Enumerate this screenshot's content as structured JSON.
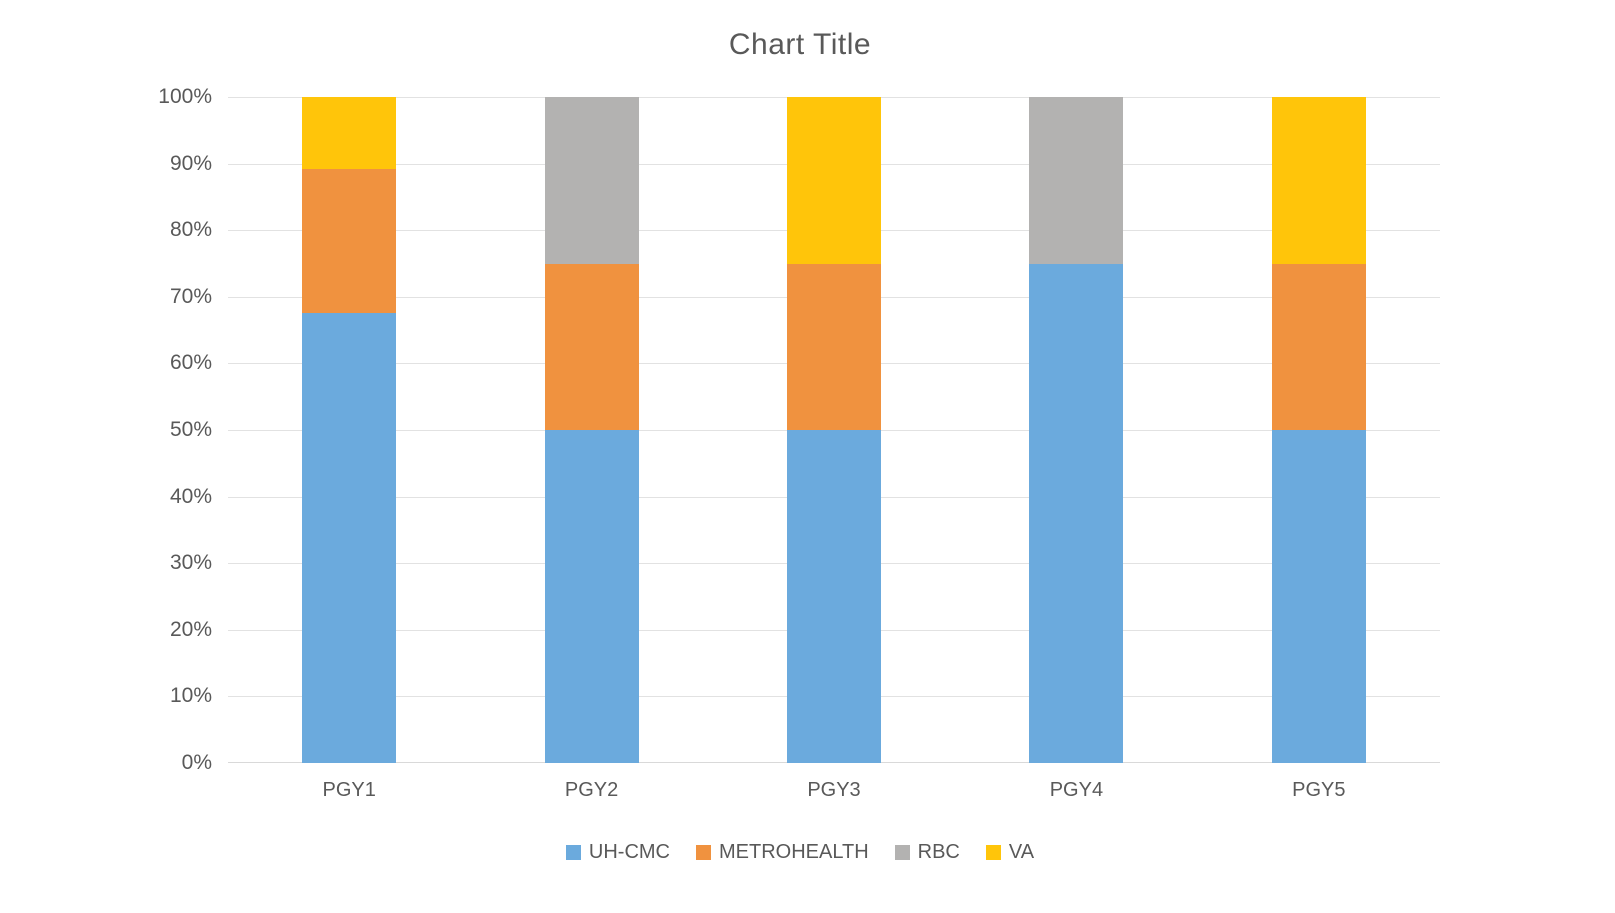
{
  "page": {
    "background": "#FFFFFF"
  },
  "chart_data": {
    "type": "bar",
    "variant": "stacked-100-percent-column",
    "title": "Chart Title",
    "categories": [
      "PGY1",
      "PGY2",
      "PGY3",
      "PGY4",
      "PGY5"
    ],
    "series": [
      {
        "name": "UH-CMC",
        "color": "#6BAADD",
        "values": [
          67.5,
          50,
          50,
          75,
          50
        ]
      },
      {
        "name": "METROHEALTH",
        "color": "#F0923F",
        "values": [
          21.7,
          25,
          25,
          0,
          25
        ]
      },
      {
        "name": "RBC",
        "color": "#B3B2B1",
        "values": [
          0,
          25,
          0,
          25,
          0
        ]
      },
      {
        "name": "VA",
        "color": "#FFC50A",
        "values": [
          10.8,
          0,
          25,
          0,
          25
        ]
      }
    ],
    "xlabel": "",
    "ylabel": "",
    "ylim": [
      0,
      100
    ],
    "y_tick_labels": [
      "0%",
      "10%",
      "20%",
      "30%",
      "40%",
      "50%",
      "60%",
      "70%",
      "80%",
      "90%",
      "100%"
    ],
    "grid": true,
    "legend_position": "bottom",
    "style": {
      "title_color": "#595959",
      "axis_text_color": "#595959",
      "gridline_color": "#E2E2E2",
      "axis_line_color": "#D9D9D9",
      "plot_background": "#FFFFFF"
    }
  }
}
